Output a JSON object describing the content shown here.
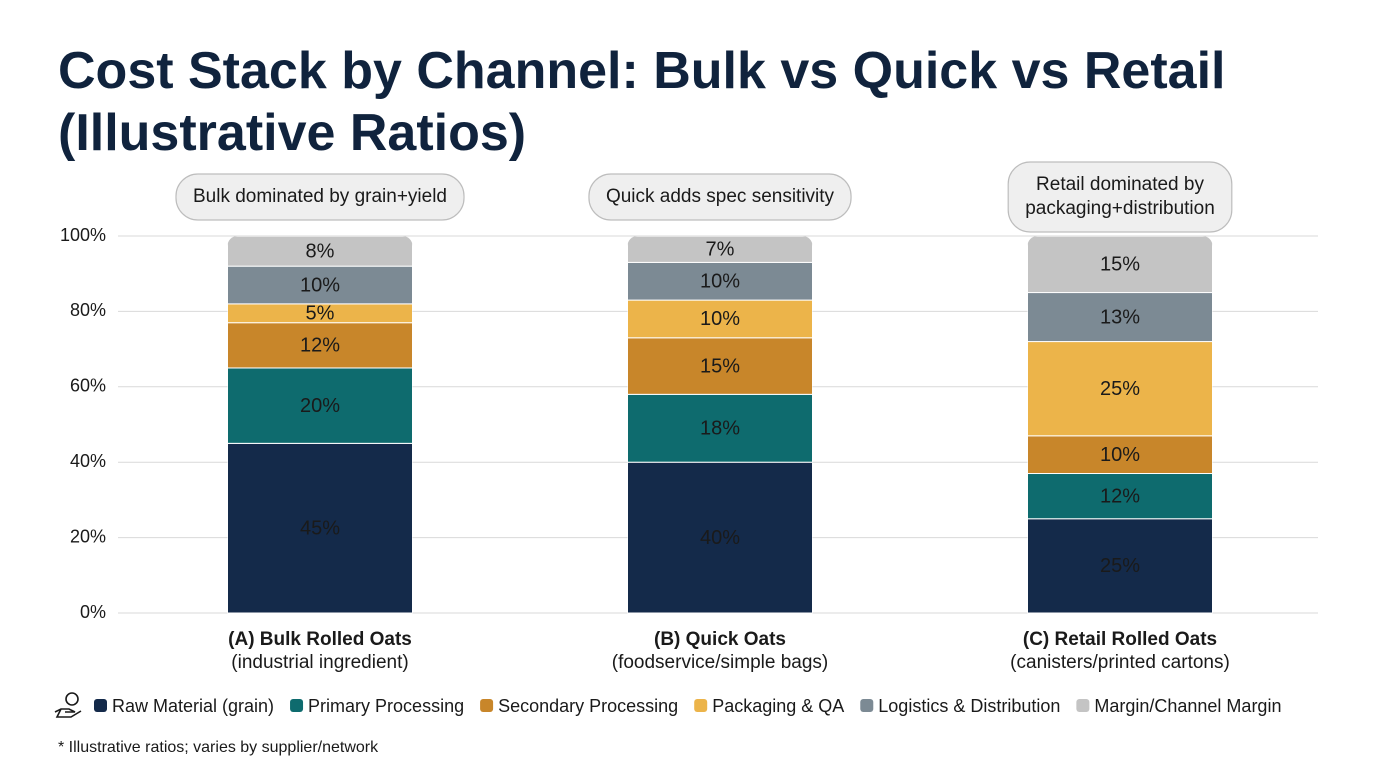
{
  "chart_data": {
    "type": "stacked_bar",
    "title": "Cost Stack by Channel: Bulk vs Quick vs Retail",
    "subtitle": "(Illustrative Ratios)",
    "categories": [
      "(A) Bulk Rolled Oats",
      "(B) Quick Oats",
      "(C) Retail Rolled Oats"
    ],
    "category_notes": [
      "(industrial ingredient)",
      "(foodservice/simple bags)",
      "(canisters/printed cartons)"
    ],
    "annotations": [
      [
        "Bulk dominated by grain+yield"
      ],
      [
        "Quick adds spec sensitivity"
      ],
      [
        "Retail dominated by",
        "packaging+distribution"
      ]
    ],
    "series": [
      {
        "name": "Raw Material (grain)",
        "color": "#142a4a",
        "values": [
          45,
          40,
          25
        ],
        "value_labels": [
          "45%",
          "40%",
          "25%"
        ]
      },
      {
        "name": "Primary Processing",
        "color": "#0e6b6e",
        "values": [
          20,
          18,
          12
        ],
        "value_labels": [
          "20%",
          "18%",
          "12%"
        ]
      },
      {
        "name": "Secondary Processing",
        "color": "#c8862a",
        "values": [
          12,
          15,
          10
        ],
        "value_labels": [
          "12%",
          "15%",
          "10%"
        ]
      },
      {
        "name": "Packaging & QA",
        "color": "#ecb44a",
        "values": [
          5,
          10,
          25
        ],
        "value_labels": [
          "5%",
          "10%",
          "25%"
        ]
      },
      {
        "name": "Logistics & Distribution",
        "color": "#7c8a94",
        "values": [
          10,
          10,
          13
        ],
        "value_labels": [
          "10%",
          "10%",
          "13%"
        ]
      },
      {
        "name": "Margin/Channel Margin",
        "color": "#c4c4c4",
        "values": [
          8,
          7,
          15
        ],
        "value_labels": [
          "8%",
          "7%",
          "15%"
        ]
      }
    ],
    "ylim": [
      0,
      100
    ],
    "yticks": [
      {
        "value": 0,
        "label": "0%"
      },
      {
        "value": 20,
        "label": "20%"
      },
      {
        "value": 40,
        "label": "40%"
      },
      {
        "value": 60,
        "label": "60%"
      },
      {
        "value": 80,
        "label": "80%"
      },
      {
        "value": 100,
        "label": "100%"
      }
    ],
    "grid": true,
    "footnote": "* Illustrative ratios; varies by supplier/network"
  }
}
